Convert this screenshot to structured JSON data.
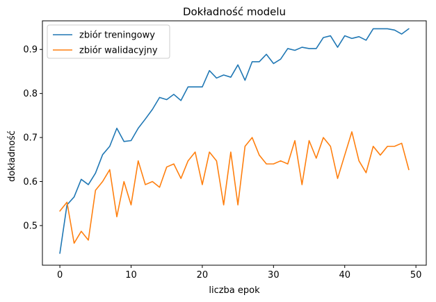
{
  "chart_data": {
    "type": "line",
    "title": "Dokładność modelu",
    "xlabel": "liczba epok",
    "ylabel": "dokładność",
    "xlim": [
      -2.45,
      51.45
    ],
    "ylim": [
      0.41,
      0.965
    ],
    "xticks": [
      0,
      10,
      20,
      30,
      40,
      50
    ],
    "yticks": [
      0.5,
      0.6,
      0.7,
      0.8,
      0.9
    ],
    "ytick_labels": [
      "0.5",
      "0.6",
      "0.7",
      "0.8",
      "0.9"
    ],
    "grid": false,
    "legend_position": "top-left",
    "x": [
      0,
      1,
      2,
      3,
      4,
      5,
      6,
      7,
      8,
      9,
      10,
      11,
      12,
      13,
      14,
      15,
      16,
      17,
      18,
      19,
      20,
      21,
      22,
      23,
      24,
      25,
      26,
      27,
      28,
      29,
      30,
      31,
      32,
      33,
      34,
      35,
      36,
      37,
      38,
      39,
      40,
      41,
      42,
      43,
      44,
      45,
      46,
      47,
      48,
      49
    ],
    "series": [
      {
        "name": "zbiór treningowy",
        "color": "#1f77b4",
        "values": [
          0.437,
          0.547,
          0.565,
          0.605,
          0.593,
          0.619,
          0.661,
          0.68,
          0.721,
          0.691,
          0.693,
          0.721,
          0.742,
          0.764,
          0.791,
          0.786,
          0.798,
          0.784,
          0.815,
          0.815,
          0.815,
          0.852,
          0.835,
          0.842,
          0.837,
          0.865,
          0.83,
          0.872,
          0.872,
          0.889,
          0.868,
          0.878,
          0.902,
          0.898,
          0.905,
          0.902,
          0.902,
          0.927,
          0.931,
          0.905,
          0.931,
          0.925,
          0.929,
          0.921,
          0.947,
          0.947,
          0.947,
          0.944,
          0.935,
          0.947
        ]
      },
      {
        "name": "zbiór walidacyjny",
        "color": "#ff7f0e",
        "values": [
          0.533,
          0.553,
          0.46,
          0.487,
          0.467,
          0.58,
          0.6,
          0.627,
          0.52,
          0.6,
          0.547,
          0.647,
          0.593,
          0.6,
          0.587,
          0.633,
          0.64,
          0.607,
          0.647,
          0.667,
          0.593,
          0.667,
          0.647,
          0.547,
          0.667,
          0.547,
          0.68,
          0.7,
          0.66,
          0.64,
          0.64,
          0.647,
          0.64,
          0.693,
          0.593,
          0.693,
          0.653,
          0.7,
          0.68,
          0.607,
          0.66,
          0.713,
          0.647,
          0.62,
          0.68,
          0.66,
          0.68,
          0.68,
          0.687,
          0.627
        ]
      }
    ]
  }
}
